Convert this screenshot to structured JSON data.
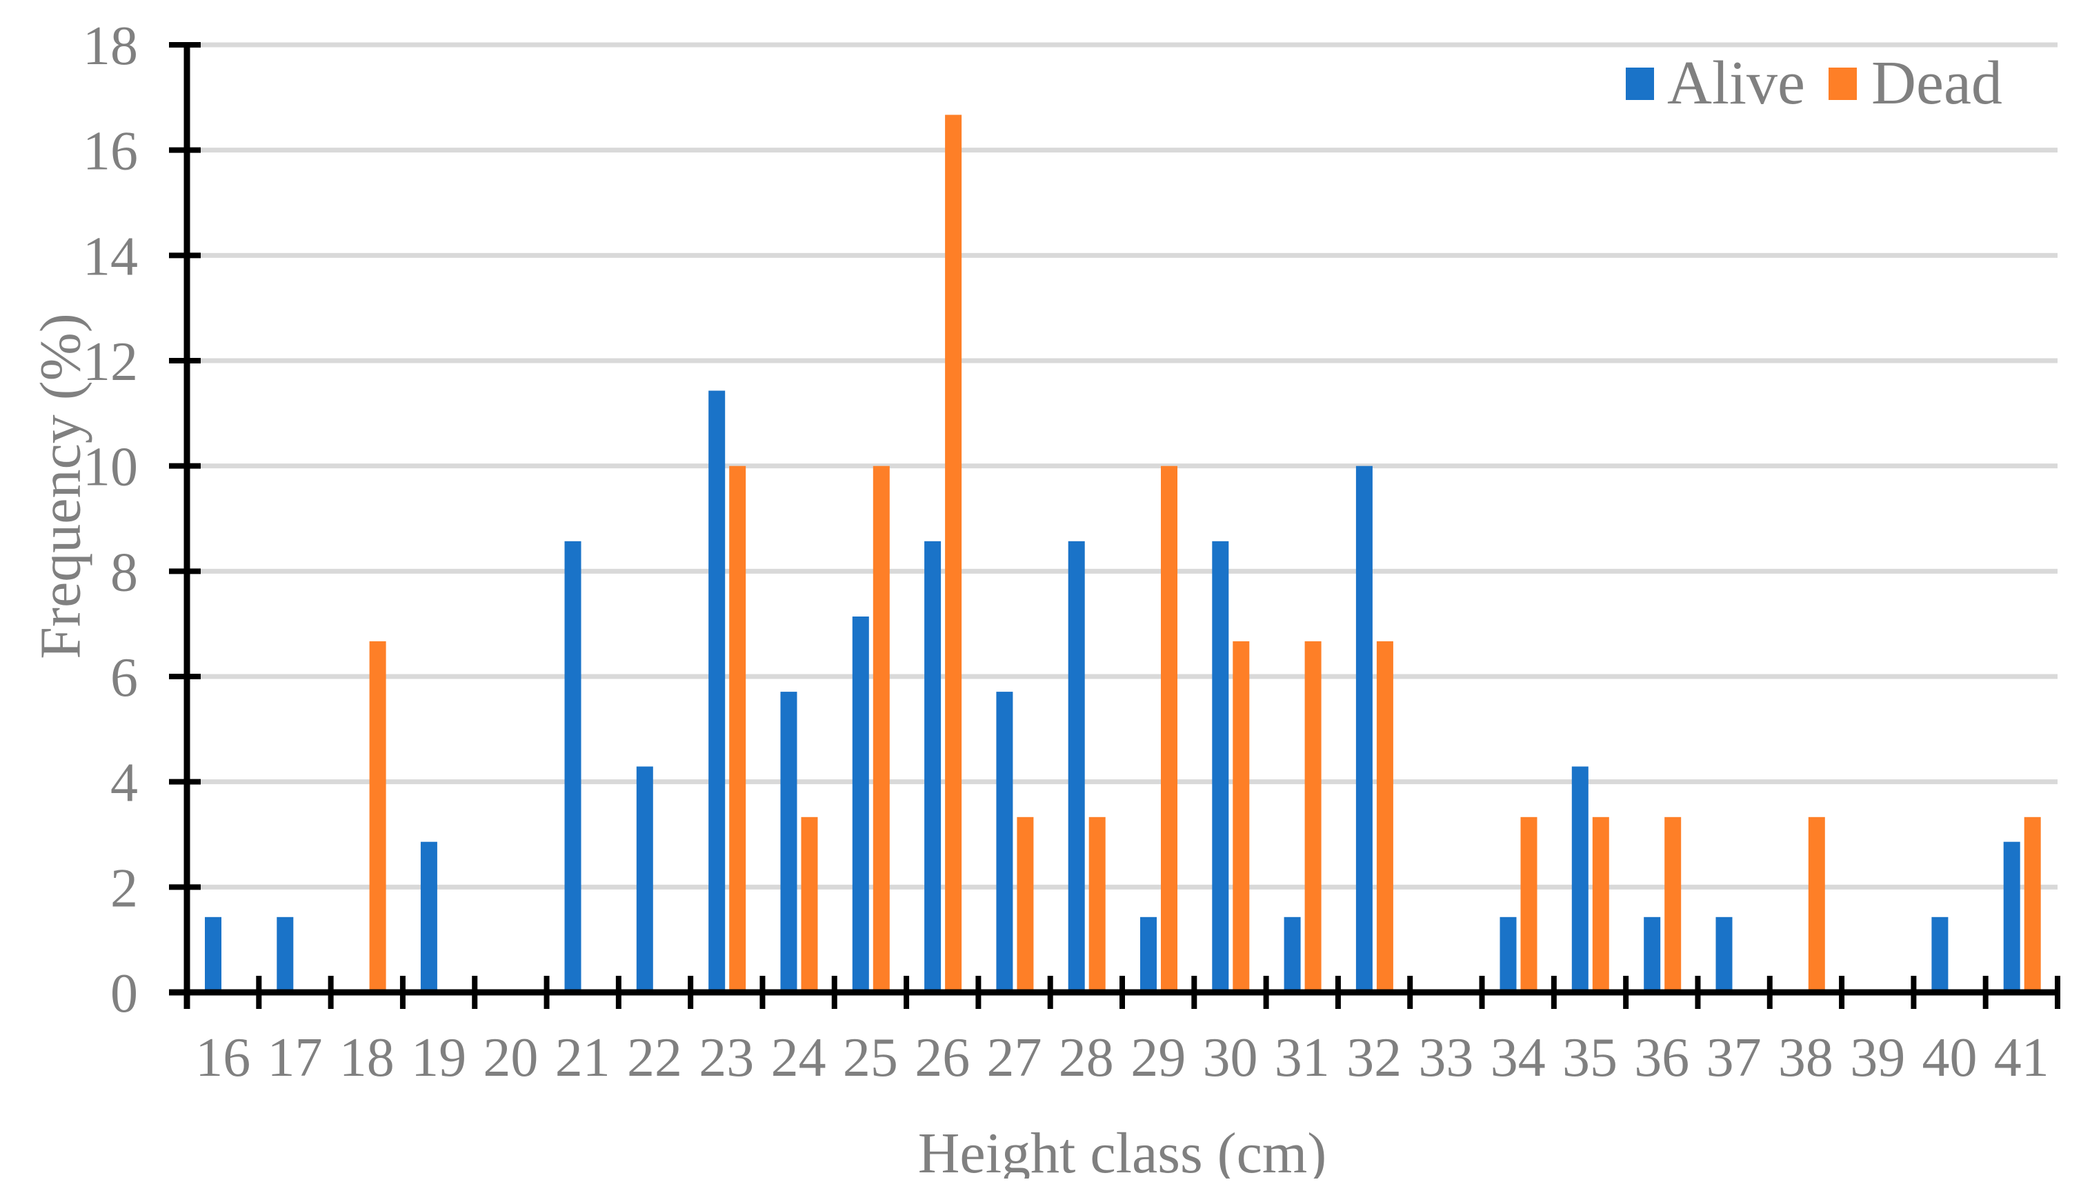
{
  "chart_data": {
    "type": "bar",
    "title": "",
    "xlabel": "Height class (cm)",
    "ylabel": "Frequency (%)",
    "ylim": [
      0,
      18
    ],
    "yticks": [
      0,
      2,
      4,
      6,
      8,
      10,
      12,
      14,
      16,
      18
    ],
    "grid": true,
    "legend_position": "top-right",
    "categories": [
      "16",
      "17",
      "18",
      "19",
      "20",
      "21",
      "22",
      "23",
      "24",
      "25",
      "26",
      "27",
      "28",
      "29",
      "30",
      "31",
      "32",
      "33",
      "34",
      "35",
      "36",
      "37",
      "38",
      "39",
      "40",
      "41"
    ],
    "series": [
      {
        "name": "Alive",
        "color": "#1A73C8",
        "values": [
          1.43,
          1.43,
          0,
          2.86,
          0,
          8.57,
          4.29,
          11.43,
          5.71,
          7.14,
          8.57,
          5.71,
          8.57,
          1.43,
          8.57,
          1.43,
          10.0,
          0,
          1.43,
          4.29,
          1.43,
          1.43,
          0,
          0,
          1.43,
          2.86
        ]
      },
      {
        "name": "Dead",
        "color": "#FE7F27",
        "values": [
          0,
          0,
          6.67,
          0,
          0,
          0,
          0,
          10.0,
          3.33,
          10.0,
          16.67,
          3.33,
          3.33,
          10.0,
          6.67,
          6.67,
          6.67,
          0,
          3.33,
          3.33,
          3.33,
          0,
          3.33,
          0,
          0,
          3.33
        ]
      }
    ]
  },
  "legend": {
    "items": [
      {
        "label": "Alive",
        "color": "#1A73C8"
      },
      {
        "label": "Dead",
        "color": "#FE7F27"
      }
    ]
  },
  "axes": {
    "x_title": "Height class (cm)",
    "y_title": "Frequency (%)"
  }
}
